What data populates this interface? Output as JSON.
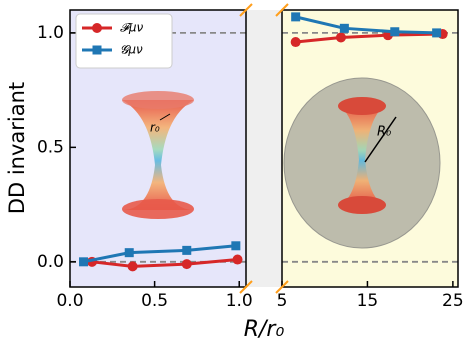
{
  "chart_data": [
    {
      "type": "line",
      "ylabel": "DD invariant",
      "xlabel": "R/r₀",
      "background": "#e6e6fa",
      "xlim": [
        0,
        1.04
      ],
      "ylim": [
        -0.11,
        1.1
      ],
      "xticks": [
        {
          "value": 0,
          "label": "0.0"
        },
        {
          "value": 0.5,
          "label": "0.5"
        },
        {
          "value": 1.0,
          "label": "1.0"
        }
      ],
      "yticks": [
        {
          "value": 0,
          "label": "0.0"
        },
        {
          "value": 0.5,
          "label": "0.5"
        },
        {
          "value": 1.0,
          "label": "1.0"
        }
      ],
      "hlines": [
        0,
        1
      ],
      "annotations": [
        "r₀"
      ],
      "series": [
        {
          "name": "𝓕μν",
          "color": "#d62728",
          "marker": "circle",
          "x": [
            0.13,
            0.37,
            0.69,
            0.99
          ],
          "values": [
            0.0,
            -0.02,
            -0.01,
            0.01
          ]
        },
        {
          "name": "𝓖μν",
          "color": "#1f77b4",
          "marker": "square",
          "x": [
            0.08,
            0.35,
            0.69,
            0.98
          ],
          "values": [
            0.0,
            0.04,
            0.05,
            0.07
          ]
        }
      ]
    },
    {
      "type": "line",
      "background": "#fdfbdc",
      "xlim": [
        5,
        25.6
      ],
      "ylim": [
        -0.11,
        1.1
      ],
      "xticks": [
        5,
        15,
        25
      ],
      "hlines": [
        0,
        1
      ],
      "annotations": [
        "R₀"
      ],
      "series": [
        {
          "color": "#d62728",
          "marker": "circle",
          "x": [
            6.6,
            11.9,
            17.4,
            23.8
          ],
          "values": [
            0.96,
            0.98,
            0.99,
            0.995
          ]
        },
        {
          "color": "#1f77b4",
          "marker": "square",
          "x": [
            6.6,
            12.3,
            18.2,
            23.1
          ],
          "values": [
            1.07,
            1.02,
            1.005,
            1.0
          ]
        }
      ]
    }
  ]
}
